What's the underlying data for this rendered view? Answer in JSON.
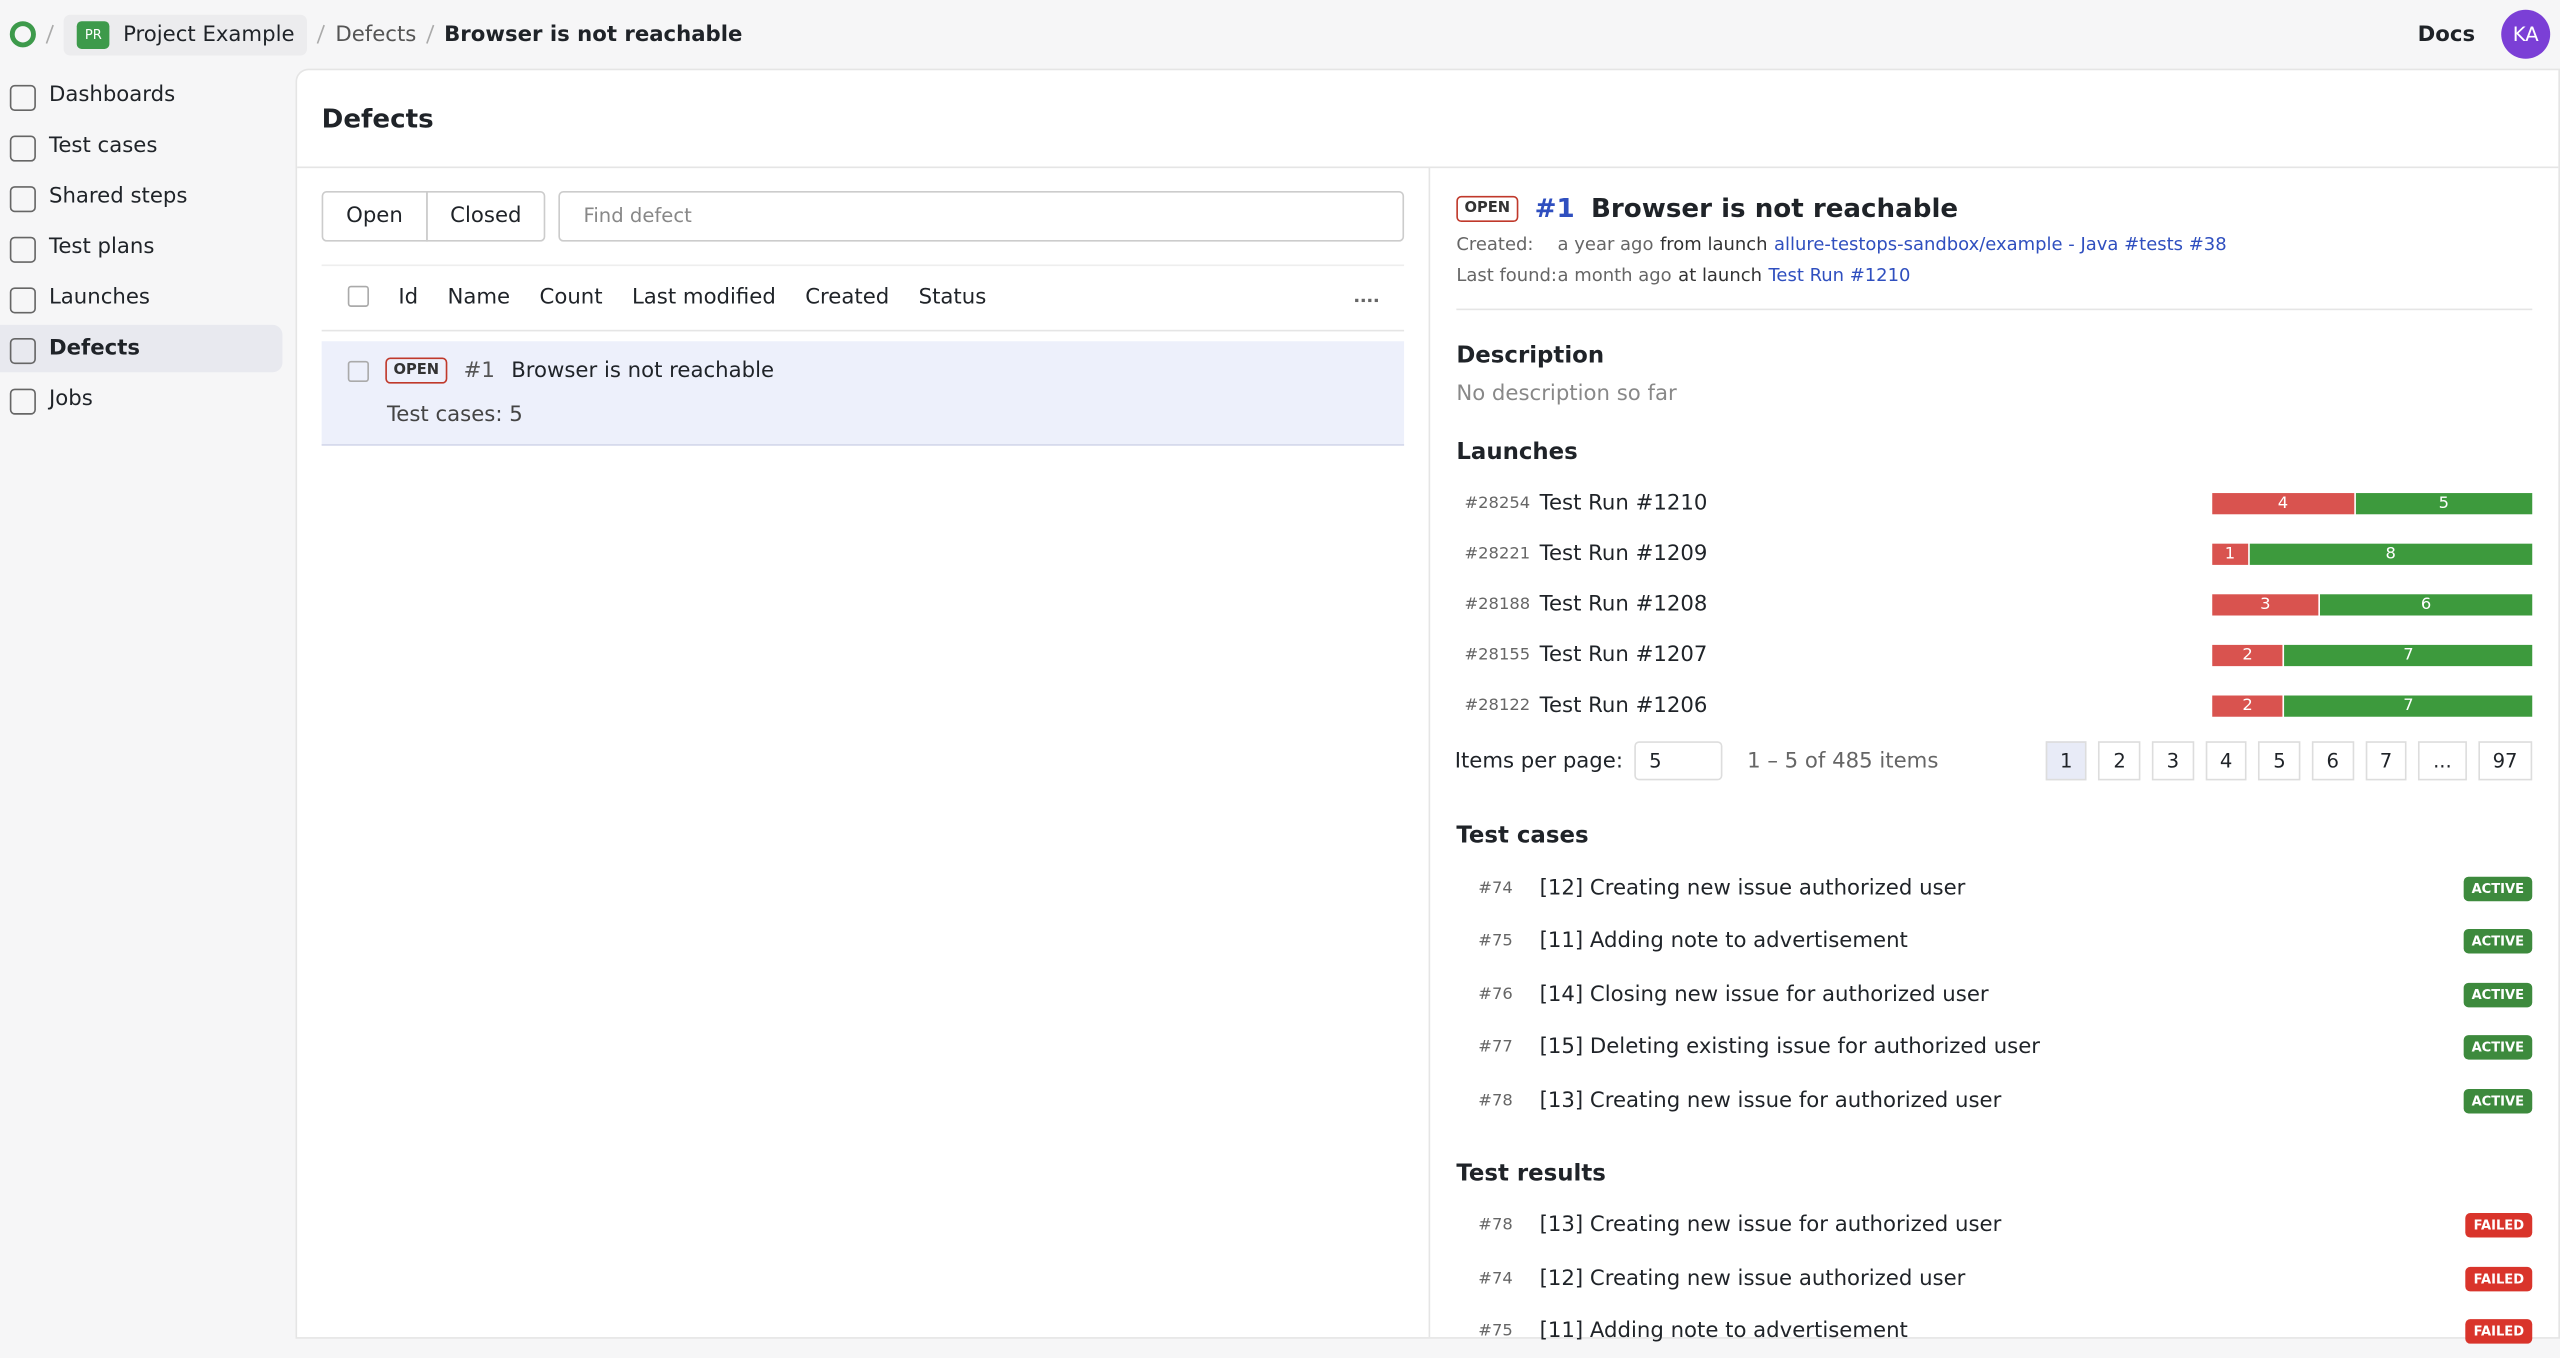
{
  "topbar": {
    "project_badge": "PR",
    "breadcrumb": [
      "Project Example",
      "Defects",
      "Browser is not reachable"
    ],
    "docs": "Docs",
    "avatar": "KA"
  },
  "sidebar": [
    "Dashboards",
    "Test cases",
    "Shared steps",
    "Test plans",
    "Launches",
    "Defects",
    "Jobs"
  ],
  "list": {
    "title": "Defects",
    "tabs": [
      "Open",
      "Closed"
    ],
    "search_placeholder": "Find defect",
    "columns": [
      "Id",
      "Name",
      "Count",
      "Last modified",
      "Created",
      "Status"
    ],
    "rows": [
      {
        "status": "OPEN",
        "id": "#1",
        "name": "Browser is not reachable",
        "test_cases": "Test cases: 5"
      }
    ]
  },
  "detail": {
    "status": "OPEN",
    "id": "#1",
    "title": "Browser is not reachable",
    "created_label": "Created:",
    "created_when": "a year ago",
    "created_from": "from launch",
    "created_link": "allure-testops-sandbox/example - Java #tests #38",
    "found_label": "Last found:",
    "found_when": "a month ago",
    "found_at": "at launch",
    "found_link": "Test Run #1210",
    "description_heading": "Description",
    "description": "No description so far",
    "launches_heading": "Launches",
    "launches": [
      {
        "id": "#28254",
        "name": "Test Run #1210",
        "failed": 4,
        "passed": 5
      },
      {
        "id": "#28221",
        "name": "Test Run #1209",
        "failed": 1,
        "passed": 8
      },
      {
        "id": "#28188",
        "name": "Test Run #1208",
        "failed": 3,
        "passed": 6
      },
      {
        "id": "#28155",
        "name": "Test Run #1207",
        "failed": 2,
        "passed": 7
      },
      {
        "id": "#28122",
        "name": "Test Run #1206",
        "failed": 2,
        "passed": 7
      }
    ],
    "per_page_label": "Items per page:",
    "per_page": "5",
    "range": "1 – 5 of 485 items",
    "pages": [
      "1",
      "2",
      "3",
      "4",
      "5",
      "6",
      "7",
      "...",
      "97"
    ],
    "test_cases_heading": "Test cases",
    "test_cases": [
      {
        "id": "#74",
        "name": "[12] Creating new issue authorized user",
        "status": "ACTIVE"
      },
      {
        "id": "#75",
        "name": "[11] Adding note to advertisement",
        "status": "ACTIVE"
      },
      {
        "id": "#76",
        "name": "[14] Closing new issue for authorized user",
        "status": "ACTIVE"
      },
      {
        "id": "#77",
        "name": "[15] Deleting existing issue for authorized user",
        "status": "ACTIVE"
      },
      {
        "id": "#78",
        "name": "[13] Creating new issue for authorized user",
        "status": "ACTIVE"
      }
    ],
    "test_results_heading": "Test results",
    "test_results": [
      {
        "id": "#78",
        "name": "[13] Creating new issue for authorized user",
        "status": "FAILED"
      },
      {
        "id": "#74",
        "name": "[12] Creating new issue authorized user",
        "status": "FAILED"
      },
      {
        "id": "#75",
        "name": "[11] Adding note to advertisement",
        "status": "FAILED"
      }
    ]
  }
}
